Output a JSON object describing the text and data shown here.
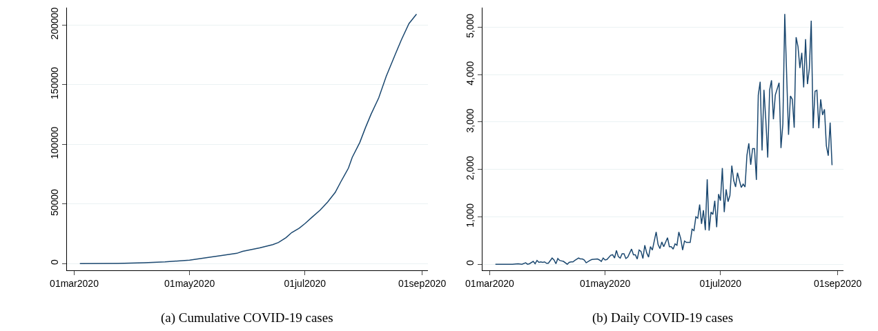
{
  "chart_data": [
    {
      "type": "line",
      "color": "#1a476f",
      "grid": "y",
      "x": [
        "2020-03-04",
        "2020-03-24",
        "2020-04-07",
        "2020-04-18",
        "2020-05-01",
        "2020-05-11",
        "2020-05-18",
        "2020-05-26",
        "2020-05-29",
        "2020-06-07",
        "2020-06-14",
        "2020-06-17",
        "2020-06-21",
        "2020-06-24",
        "2020-06-28",
        "2020-07-01",
        "2020-07-05",
        "2020-07-09",
        "2020-07-13",
        "2020-07-17",
        "2020-07-20",
        "2020-07-24",
        "2020-07-26",
        "2020-07-30",
        "2020-08-02",
        "2020-08-05",
        "2020-08-09",
        "2020-08-13",
        "2020-08-18",
        "2020-08-21",
        "2020-08-25",
        "2020-08-29"
      ],
      "values": [
        0,
        200,
        700,
        1400,
        2900,
        5200,
        6800,
        8600,
        10200,
        13100,
        15900,
        17700,
        21700,
        26000,
        29700,
        33500,
        39200,
        44800,
        51600,
        59600,
        68600,
        80000,
        89000,
        101500,
        113900,
        125300,
        138800,
        157000,
        176200,
        187500,
        201100,
        209000
      ],
      "xlim": [
        "2020-02-26",
        "2020-09-04"
      ],
      "xticks": [
        {
          "value": "2020-03-01",
          "label": "01mar2020"
        },
        {
          "value": "2020-05-01",
          "label": "01may2020"
        },
        {
          "value": "2020-07-01",
          "label": "01jul2020"
        },
        {
          "value": "2020-09-01",
          "label": "01sep2020"
        }
      ],
      "ylim": [
        -5700,
        214700
      ],
      "yticks": [
        0,
        50000,
        100000,
        150000,
        200000
      ],
      "annotations": [
        "(a) Cumulative COVID-19 cases"
      ]
    },
    {
      "type": "line",
      "color": "#1a476f",
      "grid": "y",
      "x": [
        "2020-03-04",
        "2020-03-07",
        "2020-03-10",
        "2020-03-13",
        "2020-03-16",
        "2020-03-18",
        "2020-03-20",
        "2020-03-21",
        "2020-03-22",
        "2020-03-24",
        "2020-03-25",
        "2020-03-26",
        "2020-03-27",
        "2020-03-28",
        "2020-03-29",
        "2020-03-30",
        "2020-03-31",
        "2020-04-01",
        "2020-04-03",
        "2020-04-04",
        "2020-04-05",
        "2020-04-06",
        "2020-04-07",
        "2020-04-08",
        "2020-04-09",
        "2020-04-11",
        "2020-04-12",
        "2020-04-13",
        "2020-04-14",
        "2020-04-15",
        "2020-04-17",
        "2020-04-18",
        "2020-04-19",
        "2020-04-20",
        "2020-04-21",
        "2020-04-23",
        "2020-04-24",
        "2020-04-27",
        "2020-04-28",
        "2020-04-29",
        "2020-04-30",
        "2020-05-01",
        "2020-05-02",
        "2020-05-04",
        "2020-05-05",
        "2020-05-06",
        "2020-05-07",
        "2020-05-08",
        "2020-05-09",
        "2020-05-10",
        "2020-05-11",
        "2020-05-12",
        "2020-05-13",
        "2020-05-15",
        "2020-05-16",
        "2020-05-17",
        "2020-05-18",
        "2020-05-19",
        "2020-05-20",
        "2020-05-21",
        "2020-05-22",
        "2020-05-23",
        "2020-05-24",
        "2020-05-25",
        "2020-05-26",
        "2020-05-28",
        "2020-05-29",
        "2020-05-30",
        "2020-05-31",
        "2020-06-01",
        "2020-06-03",
        "2020-06-04",
        "2020-06-05",
        "2020-06-06",
        "2020-06-07",
        "2020-06-08",
        "2020-06-09",
        "2020-06-10",
        "2020-06-11",
        "2020-06-12",
        "2020-06-13",
        "2020-06-15",
        "2020-06-16",
        "2020-06-17",
        "2020-06-18",
        "2020-06-19",
        "2020-06-20",
        "2020-06-21",
        "2020-06-22",
        "2020-06-23",
        "2020-06-24",
        "2020-06-25",
        "2020-06-26",
        "2020-06-27",
        "2020-06-28",
        "2020-06-29",
        "2020-06-30",
        "2020-07-01",
        "2020-07-02",
        "2020-07-03",
        "2020-07-04",
        "2020-07-05",
        "2020-07-06",
        "2020-07-07",
        "2020-07-08",
        "2020-07-09",
        "2020-07-10",
        "2020-07-11",
        "2020-07-12",
        "2020-07-13",
        "2020-07-14",
        "2020-07-15",
        "2020-07-16",
        "2020-07-17",
        "2020-07-18",
        "2020-07-19",
        "2020-07-20",
        "2020-07-21",
        "2020-07-22",
        "2020-07-23",
        "2020-07-24",
        "2020-07-25",
        "2020-07-26",
        "2020-07-27",
        "2020-07-28",
        "2020-07-29",
        "2020-07-30",
        "2020-08-01",
        "2020-08-02",
        "2020-08-03",
        "2020-08-04",
        "2020-08-06",
        "2020-08-07",
        "2020-08-08",
        "2020-08-09",
        "2020-08-10",
        "2020-08-11",
        "2020-08-12",
        "2020-08-13",
        "2020-08-14",
        "2020-08-15",
        "2020-08-16",
        "2020-08-17",
        "2020-08-18",
        "2020-08-19",
        "2020-08-20",
        "2020-08-21",
        "2020-08-22",
        "2020-08-23",
        "2020-08-24",
        "2020-08-25",
        "2020-08-26",
        "2020-08-27",
        "2020-08-28",
        "2020-08-29"
      ],
      "values": [
        0,
        0,
        0,
        0,
        10,
        0,
        30,
        0,
        10,
        60,
        10,
        80,
        40,
        50,
        40,
        50,
        20,
        20,
        130,
        90,
        10,
        120,
        80,
        70,
        60,
        0,
        40,
        50,
        50,
        80,
        130,
        110,
        110,
        90,
        30,
        80,
        100,
        110,
        90,
        60,
        130,
        90,
        100,
        190,
        200,
        130,
        290,
        160,
        130,
        220,
        220,
        120,
        150,
        320,
        200,
        200,
        110,
        300,
        270,
        120,
        400,
        240,
        150,
        370,
        300,
        680,
        420,
        330,
        470,
        370,
        560,
        370,
        370,
        320,
        430,
        400,
        680,
        540,
        300,
        490,
        460,
        460,
        740,
        710,
        1000,
        970,
        1260,
        850,
        1140,
        720,
        1790,
        710,
        1100,
        1050,
        1340,
        780,
        1480,
        1340,
        2030,
        1100,
        1580,
        1320,
        1450,
        2080,
        1770,
        1630,
        1930,
        1770,
        1620,
        1690,
        1630,
        2300,
        2550,
        2100,
        2440,
        2440,
        1780,
        3570,
        3850,
        2400,
        3680,
        3030,
        2250,
        3680,
        3880,
        3060,
        3570,
        3830,
        2450,
        2960,
        5280,
        2730,
        3550,
        3480,
        2880,
        4790,
        4590,
        4140,
        4460,
        3730,
        4750,
        3800,
        4130,
        5140,
        2870,
        3650,
        3670,
        2870,
        3480,
        3150,
        3270,
        2500,
        2290,
        2990,
        2090
      ],
      "xlim": [
        "2020-02-26",
        "2020-09-04"
      ],
      "xticks": [
        {
          "value": "2020-03-01",
          "label": "01mar2020"
        },
        {
          "value": "2020-05-01",
          "label": "01may2020"
        },
        {
          "value": "2020-07-01",
          "label": "01jul2020"
        },
        {
          "value": "2020-09-01",
          "label": "01sep2020"
        }
      ],
      "ylim": [
        -130,
        5420
      ],
      "yticks": [
        0,
        {
          "value": 1000,
          "label": "1,000"
        },
        {
          "value": 2000,
          "label": "2,000"
        },
        {
          "value": 3000,
          "label": "3,000"
        },
        {
          "value": 4000,
          "label": "4,000"
        },
        {
          "value": 5000,
          "label": "5,000"
        }
      ],
      "annotations": [
        "(b) Daily COVID-19 cases"
      ]
    }
  ]
}
